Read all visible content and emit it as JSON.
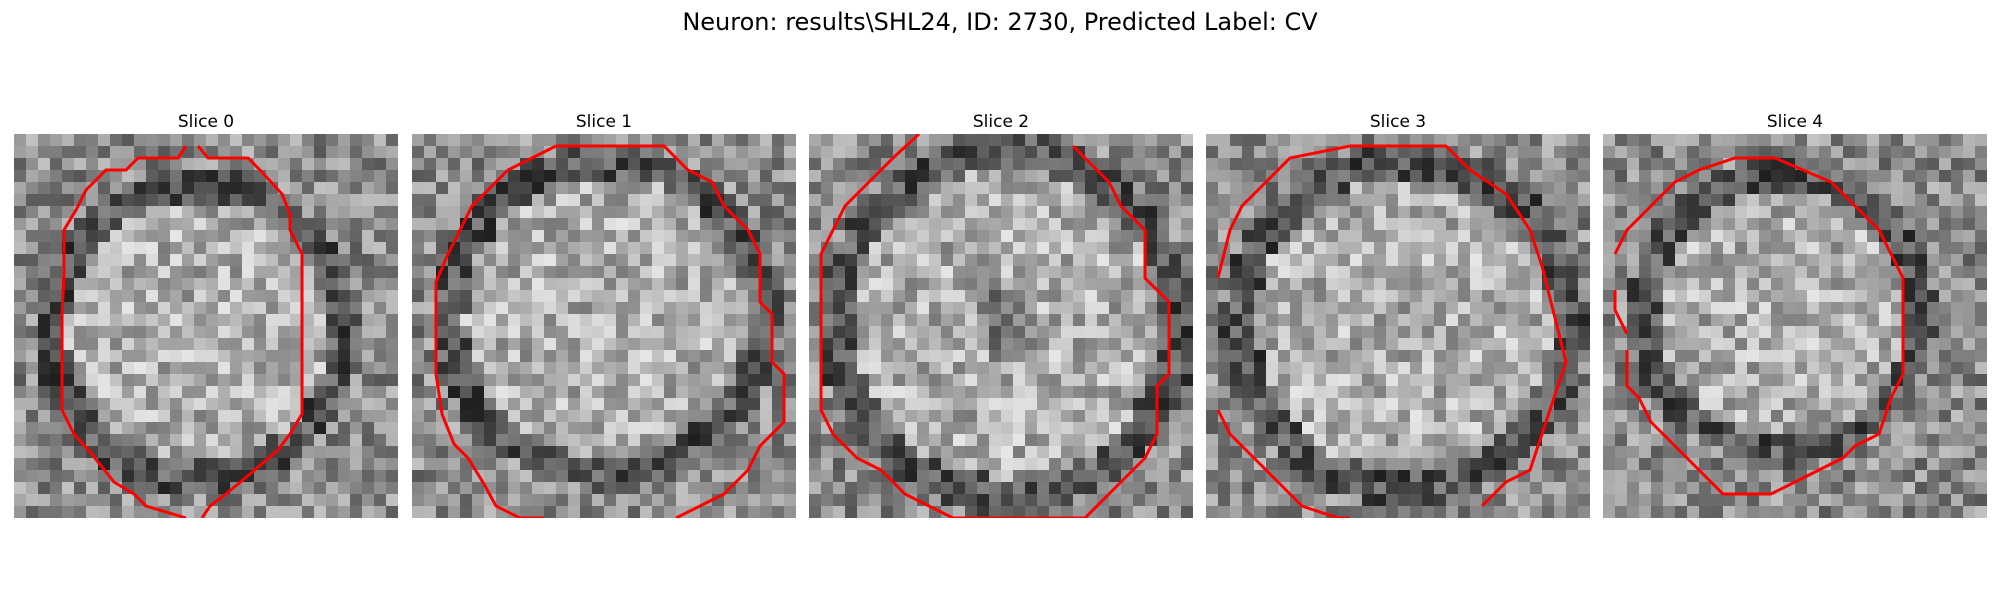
{
  "figure": {
    "title": "Neuron: results\\SHL24, ID: 2730, Predicted Label: CV"
  },
  "slices": [
    {
      "title": "Slice 0"
    },
    {
      "title": "Slice 1"
    },
    {
      "title": "Slice 2"
    },
    {
      "title": "Slice 3"
    },
    {
      "title": "Slice 4"
    }
  ],
  "colors": {
    "contour": "#ff0000",
    "colormap": "gray"
  }
}
